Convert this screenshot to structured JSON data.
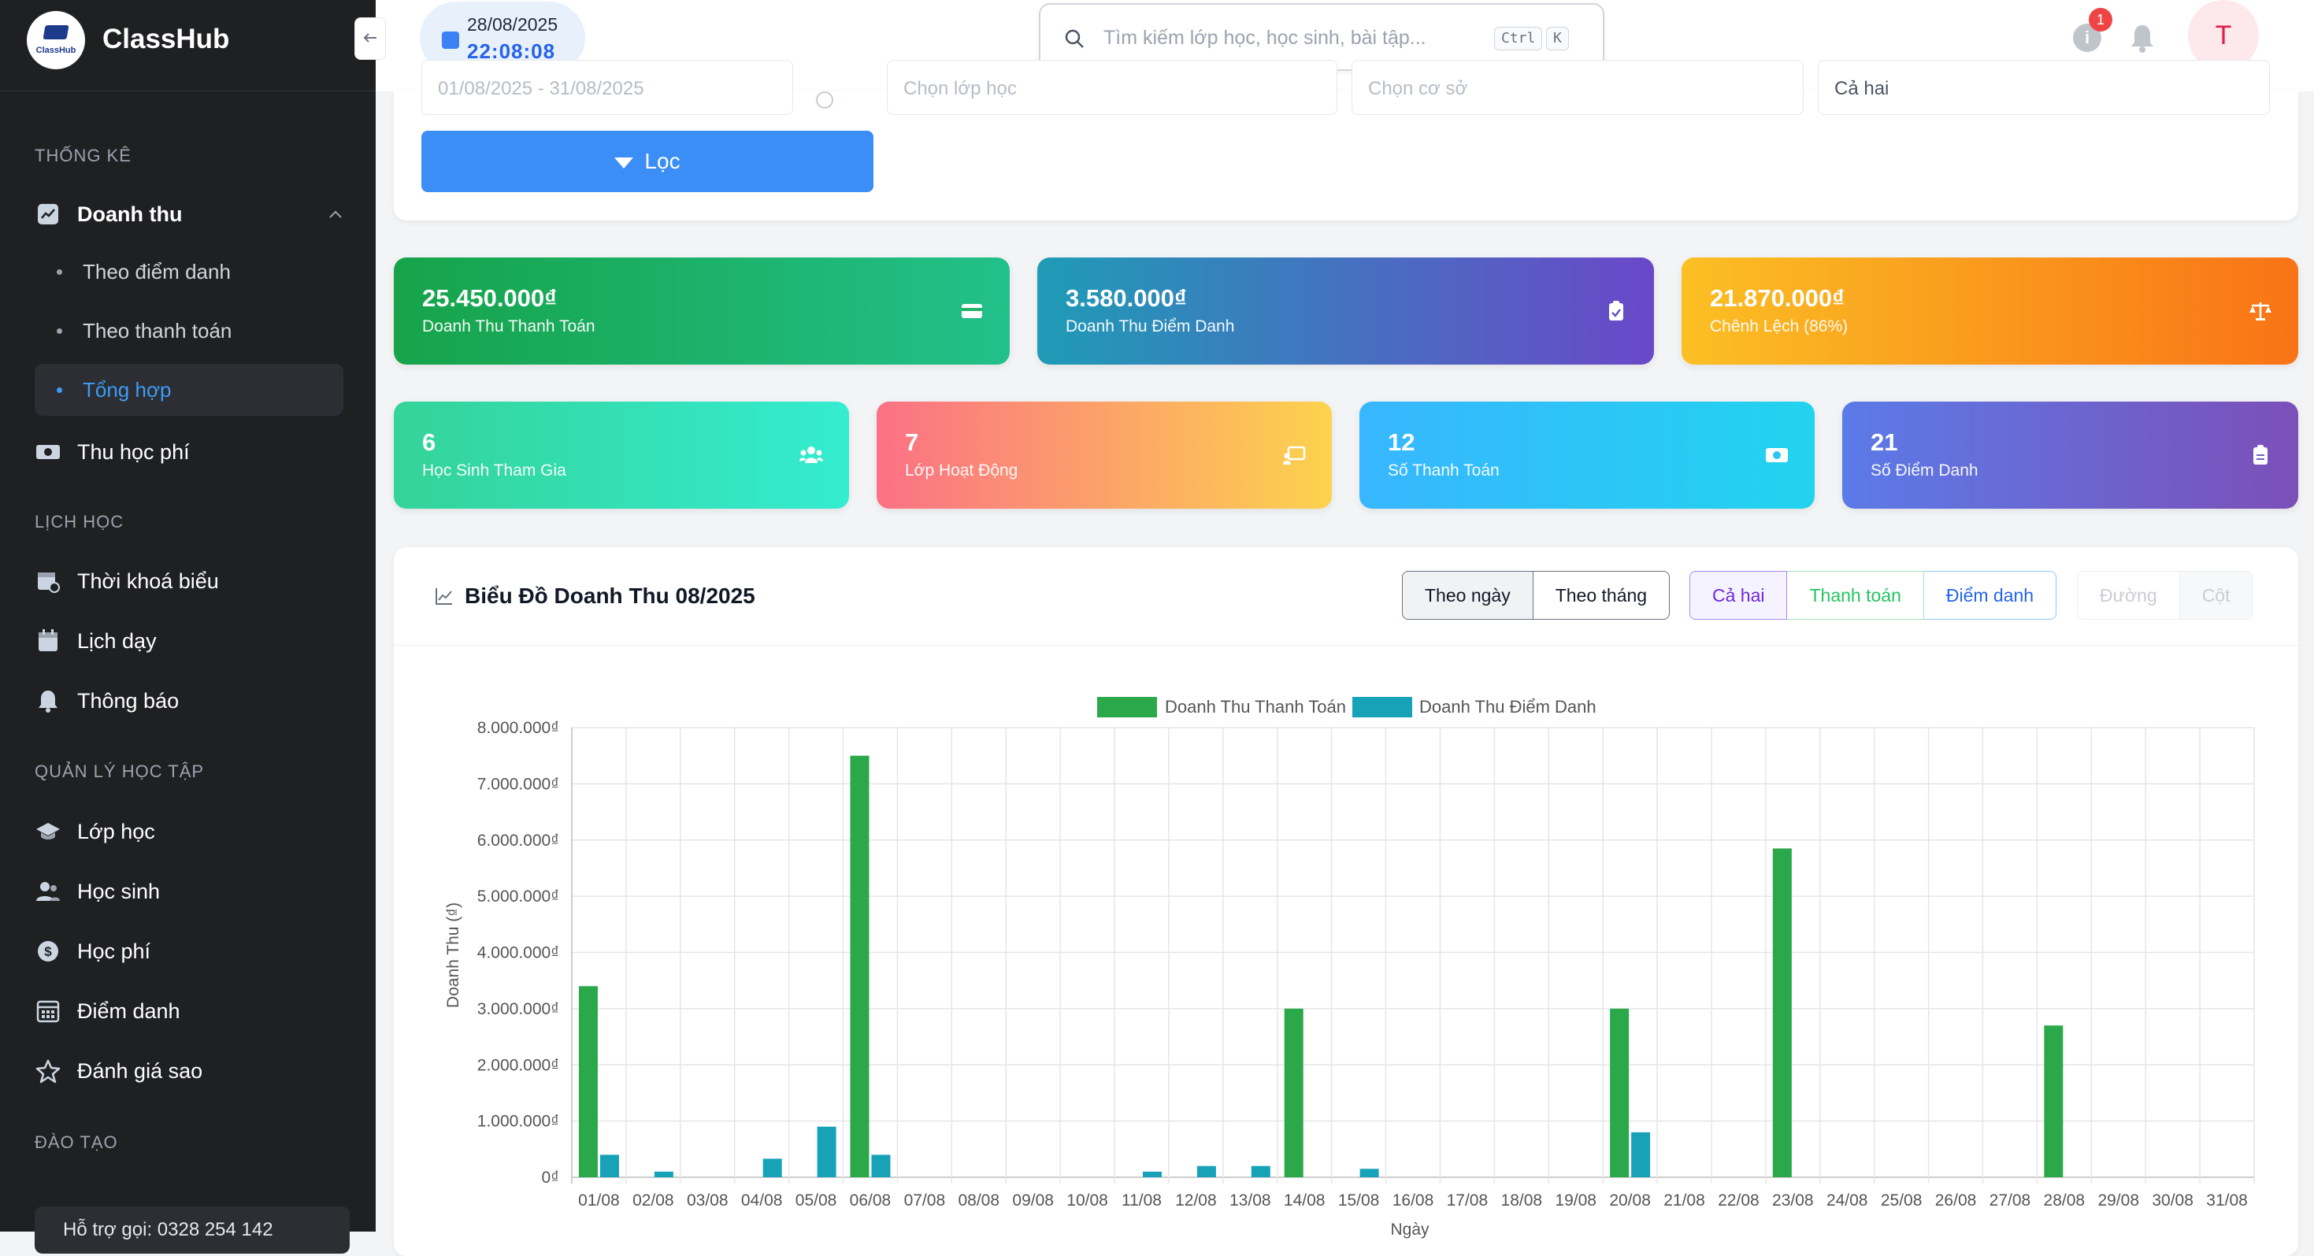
{
  "app": {
    "name": "ClassHub",
    "logo_text": "ClassHub"
  },
  "sidebar": {
    "sections": [
      {
        "title": "THỐNG KÊ"
      },
      {
        "title": "LỊCH HỌC"
      },
      {
        "title": "QUẢN LÝ HỌC TẬP"
      },
      {
        "title": "ĐÀO TẠO"
      }
    ],
    "revenue": {
      "label": "Doanh thu",
      "icon": "chart-icon"
    },
    "revenue_sub": [
      {
        "label": "Theo điểm danh"
      },
      {
        "label": "Theo thanh toán"
      },
      {
        "label": "Tổng hợp",
        "active": true
      }
    ],
    "items": [
      {
        "label": "Thu học phí",
        "icon": "money-icon"
      },
      {
        "label": "Thời khoá biểu",
        "icon": "calendar-clock-icon"
      },
      {
        "label": "Lịch dạy",
        "icon": "calendar-icon"
      },
      {
        "label": "Thông báo",
        "icon": "bell-icon"
      },
      {
        "label": "Lớp học",
        "icon": "graduation-cap-icon"
      },
      {
        "label": "Học sinh",
        "icon": "users-icon"
      },
      {
        "label": "Học phí",
        "icon": "dollar-icon"
      },
      {
        "label": "Điểm danh",
        "icon": "calendar-grid-icon"
      },
      {
        "label": "Đánh giá sao",
        "icon": "star-icon"
      }
    ],
    "support": "Hỗ trợ gọi: 0328 254 142"
  },
  "topbar": {
    "date": "28/08/2025",
    "time": "22:08:08",
    "search_placeholder": "Tìm kiếm lớp học, học sinh, bài tập...",
    "kbd_ctrl": "Ctrl",
    "kbd_k": "K",
    "notification_count": "1",
    "avatar_initial": "T"
  },
  "filter": {
    "date_range": "01/08/2025 - 31/08/2025",
    "class_placeholder": "Chọn lớp học",
    "facility_placeholder": "Chọn cơ sở",
    "type_value": "Cả hai",
    "button_label": "Lọc"
  },
  "stats_top": [
    {
      "value": "25.450.000₫",
      "label": "Doanh Thu Thanh Toán",
      "icon": "card-icon",
      "color_from": "#16a34a",
      "color_to": "#22c08a"
    },
    {
      "value": "3.580.000₫",
      "label": "Doanh Thu Điểm Danh",
      "icon": "clipboard-check-icon",
      "color_from": "#1f9bb6",
      "color_to": "#6a48c9"
    },
    {
      "value": "21.870.000₫",
      "label": "Chênh Lệch (86%)",
      "icon": "scale-icon",
      "color_from": "#fbbf24",
      "color_to": "#f97316"
    }
  ],
  "stats_bottom": [
    {
      "value": "6",
      "label": "Học Sinh Tham Gia",
      "icon": "users-icon",
      "color_from": "#34d399",
      "color_to": "#34ecd0"
    },
    {
      "value": "7",
      "label": "Lớp Hoạt Động",
      "icon": "chalkboard-icon",
      "color_from": "#fb7185",
      "color_to": "#fcd34d"
    },
    {
      "value": "12",
      "label": "Số Thanh Toán",
      "icon": "money-icon",
      "color_from": "#38b6ff",
      "color_to": "#22d3ee"
    },
    {
      "value": "21",
      "label": "Số Điểm Danh",
      "icon": "clipboard-icon",
      "color_from": "#5b7be8",
      "color_to": "#7c4fb8"
    }
  ],
  "chart_card": {
    "title": "Biểu Đồ Doanh Thu 08/2025",
    "period_buttons": [
      "Theo ngày",
      "Theo tháng"
    ],
    "source_buttons": [
      "Cả hai",
      "Thanh toán",
      "Điểm danh"
    ],
    "type_buttons": [
      "Đường",
      "Cột"
    ]
  },
  "colors": {
    "primary": "#3b8ef6",
    "series_payment": "#2aa84a",
    "series_attendance": "#17a2b8",
    "sidebar_bg": "#1f2022"
  },
  "chart_data": {
    "type": "bar",
    "ylabel": "Doanh Thu (₫)",
    "xlabel": "Ngày",
    "ylim": [
      0,
      8000000
    ],
    "y_ticks": [
      "0₫",
      "1.000.000₫",
      "2.000.000₫",
      "3.000.000₫",
      "4.000.000₫",
      "5.000.000₫",
      "6.000.000₫",
      "7.000.000₫",
      "8.000.000₫"
    ],
    "legend_position": "top",
    "grid": true,
    "categories": [
      "01/08",
      "02/08",
      "03/08",
      "04/08",
      "05/08",
      "06/08",
      "07/08",
      "08/08",
      "09/08",
      "10/08",
      "11/08",
      "12/08",
      "13/08",
      "14/08",
      "15/08",
      "16/08",
      "17/08",
      "18/08",
      "19/08",
      "20/08",
      "21/08",
      "22/08",
      "23/08",
      "24/08",
      "25/08",
      "26/08",
      "27/08",
      "28/08",
      "29/08",
      "30/08",
      "31/08"
    ],
    "series": [
      {
        "name": "Doanh Thu Thanh Toán",
        "color": "#2aa84a",
        "values": [
          3400000,
          0,
          0,
          0,
          0,
          7500000,
          0,
          0,
          0,
          0,
          0,
          0,
          0,
          3000000,
          0,
          0,
          0,
          0,
          0,
          3000000,
          0,
          0,
          5850000,
          0,
          0,
          0,
          0,
          2700000,
          0,
          0,
          0
        ]
      },
      {
        "name": "Doanh Thu Điểm Danh",
        "color": "#17a2b8",
        "values": [
          400000,
          100000,
          0,
          330000,
          900000,
          400000,
          0,
          0,
          0,
          0,
          100000,
          200000,
          200000,
          0,
          150000,
          0,
          0,
          0,
          0,
          800000,
          0,
          0,
          0,
          0,
          0,
          0,
          0,
          0,
          0,
          0,
          0
        ]
      }
    ]
  }
}
